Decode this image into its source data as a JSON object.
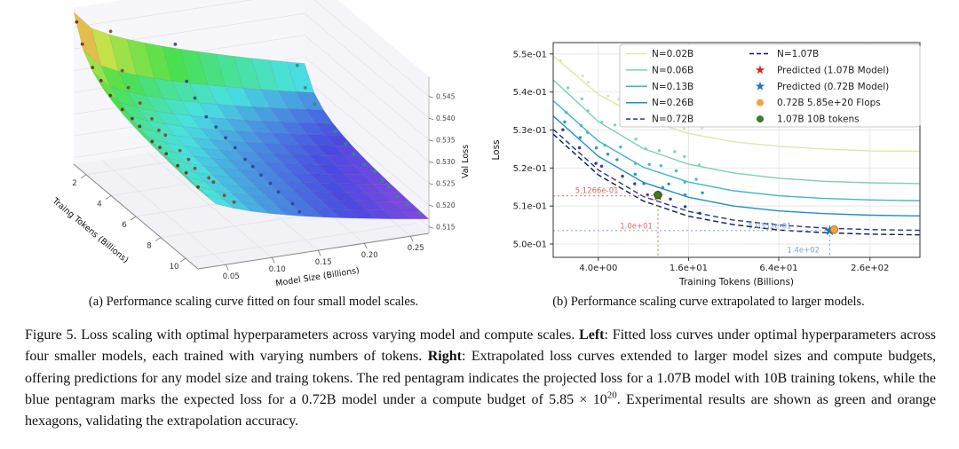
{
  "figure": {
    "subcaption_a": "(a) Performance scaling curve fitted on four small model scales.",
    "subcaption_b": "(b) Performance scaling curve extrapolated to larger models.",
    "caption_segments": [
      {
        "text": "Figure 5. Loss scaling with optimal hyperparameters across varying model and compute scales. ",
        "bold": false
      },
      {
        "text": "Left",
        "bold": true
      },
      {
        "text": ": Fitted loss curves under optimal hyperparameters across four smaller models, each trained with varying numbers of tokens. ",
        "bold": false
      },
      {
        "text": "Right",
        "bold": true
      },
      {
        "text": ": Extrapolated loss curves extended to larger model sizes and compute budgets, offering predictions for any model size and traing tokens. The red pentagram indicates the projected loss for a 1.07B model with 10B training tokens, while the blue pentagram marks the expected loss for a 0.72B model under a compute budget of 5.85 × 10",
        "bold": false
      },
      {
        "text": "20",
        "bold": false,
        "sup": true
      },
      {
        "text": ". Experimental results are shown as green and orange hexagons, validating the extrapolation accuracy.",
        "bold": false
      }
    ]
  },
  "chart_data": [
    {
      "type": "surface3d",
      "xlabel": "Model Size (Billions)",
      "ylabel": "Traing Tokens (Billions)",
      "zlabel": "Val Loss",
      "x_range": [
        0.02,
        0.27
      ],
      "y_range": [
        1,
        11
      ],
      "x_ticks": [
        0.05,
        0.1,
        0.15,
        0.2,
        0.25
      ],
      "y_ticks": [
        2,
        4,
        6,
        8,
        10
      ],
      "z_ticks": [
        0.515,
        0.52,
        0.525,
        0.53,
        0.535,
        0.54,
        0.545
      ],
      "colormap": "rainbow (red = high val loss, purple = low val loss)",
      "surface_model": {
        "base_small": 0.5285,
        "base_large": 0.5145,
        "amp_small": 0.02,
        "amp_large": 0.014,
        "token_exponent": -0.75
      },
      "scatter_model_sizes": [
        0.02,
        0.06,
        0.13,
        0.26
      ],
      "scatter_colors": [
        "#6e2f1f",
        "#8a4426",
        "#2c4792",
        "#2f8f80"
      ]
    },
    {
      "type": "line",
      "xlabel": "Training Tokens (Billions)",
      "ylabel": "Loss",
      "x_scale": "log",
      "x_range": [
        2.0,
        560
      ],
      "y_range": [
        0.4965,
        0.553
      ],
      "x_ticks": [
        "4.0e+00",
        "1.6e+01",
        "6.4e+01",
        "2.6e+02"
      ],
      "x_tick_values": [
        4,
        16,
        64,
        260
      ],
      "y_ticks": [
        "5.0e-01",
        "5.1e-01",
        "5.2e-01",
        "5.3e-01",
        "5.4e-01",
        "5.5e-01"
      ],
      "y_tick_values": [
        0.5,
        0.51,
        0.52,
        0.53,
        0.54,
        0.55
      ],
      "x": [
        2.0,
        4,
        8,
        16,
        32,
        64,
        128,
        260,
        560
      ],
      "series": [
        {
          "name": "N=0.02B",
          "color": "#dce9a6",
          "dash": false,
          "scatter": true,
          "y": [
            0.5495,
            0.5394,
            0.5329,
            0.5291,
            0.5269,
            0.5257,
            0.525,
            0.5245,
            0.5244
          ]
        },
        {
          "name": "N=0.06B",
          "color": "#7fcdbb",
          "dash": false,
          "scatter": true,
          "y": [
            0.5432,
            0.5322,
            0.5251,
            0.521,
            0.5187,
            0.5173,
            0.5165,
            0.5161,
            0.5159
          ]
        },
        {
          "name": "N=0.13B",
          "color": "#41b6c4",
          "dash": false,
          "scatter": true,
          "y": [
            0.5377,
            0.5271,
            0.5202,
            0.5163,
            0.514,
            0.5127,
            0.512,
            0.5116,
            0.5114
          ]
        },
        {
          "name": "N=0.26B",
          "color": "#1d91c0",
          "dash": false,
          "scatter": true,
          "y": [
            0.5337,
            0.5231,
            0.5162,
            0.5123,
            0.51,
            0.5087,
            0.508,
            0.5076,
            0.5074
          ]
        },
        {
          "name": "N=0.72B",
          "color": "#253494",
          "dash": true,
          "scatter": true,
          "y": [
            0.5302,
            0.5195,
            0.5125,
            0.5086,
            0.5063,
            0.505,
            0.5042,
            0.5038,
            0.5036
          ]
        },
        {
          "name": "N=1.07B",
          "color": "#081d58",
          "dash": true,
          "scatter": false,
          "y": [
            0.5289,
            0.5182,
            0.5113,
            0.5073,
            0.5051,
            0.5037,
            0.503,
            0.5026,
            0.5024
          ]
        }
      ],
      "markers": [
        {
          "label": "Predicted (1.07B Model)",
          "shape": "star",
          "color": "#d62728",
          "x": 10,
          "y": 0.51266
        },
        {
          "label": "1.07B 10B tokens",
          "shape": "circle",
          "color": "#3a7d23",
          "edge": "#1f4f12",
          "x": 10,
          "y": 0.5129
        },
        {
          "label": "Predicted (0.72B Model)",
          "shape": "star",
          "color": "#1f77b4",
          "x": 140,
          "y": 0.50352
        },
        {
          "label": "0.72B 5.85e+20 Flops",
          "shape": "circle",
          "color": "#f5a142",
          "edge": "#b97a1d",
          "x": 150,
          "y": 0.5038
        }
      ],
      "guides": [
        {
          "color": "#e0695a",
          "x": 10,
          "y": 0.51266
        },
        {
          "color": "#7d9fd3",
          "x": 140,
          "y": 0.50352
        }
      ],
      "annotations": [
        {
          "text": "5.1266e-01",
          "color": "#e0695a",
          "x": 2.8,
          "y": 0.5134,
          "anchor": "start"
        },
        {
          "text": "1.0e+01",
          "color": "#e0695a",
          "x": 9.2,
          "y": 0.5041,
          "anchor": "end"
        },
        {
          "text": "5.0352e-01",
          "color": "#7d9fd3",
          "x": 40,
          "y": 0.5041,
          "anchor": "start"
        },
        {
          "text": "1.4e+02",
          "color": "#7d9fd3",
          "x": 120,
          "y": 0.4978,
          "anchor": "end"
        }
      ],
      "legend": {
        "col1": [
          {
            "label": "N=0.02B",
            "color": "#dce9a6",
            "dash": false
          },
          {
            "label": "N=0.06B",
            "color": "#7fcdbb",
            "dash": false
          },
          {
            "label": "N=0.13B",
            "color": "#41b6c4",
            "dash": false
          },
          {
            "label": "N=0.26B",
            "color": "#1d91c0",
            "dash": false
          },
          {
            "label": "N=0.72B",
            "color": "#253494",
            "dash": true
          }
        ],
        "col2": [
          {
            "label": "N=1.07B",
            "type": "line",
            "color": "#081d58",
            "dash": true
          },
          {
            "label": "Predicted (1.07B Model)",
            "type": "star",
            "color": "#d62728"
          },
          {
            "label": "Predicted (0.72B Model)",
            "type": "star",
            "color": "#1f77b4"
          },
          {
            "label": "0.72B 5.85e+20 Flops",
            "type": "circle",
            "color": "#f5a142"
          },
          {
            "label": "1.07B 10B tokens",
            "type": "circle",
            "color": "#3a7d23"
          }
        ]
      }
    }
  ]
}
